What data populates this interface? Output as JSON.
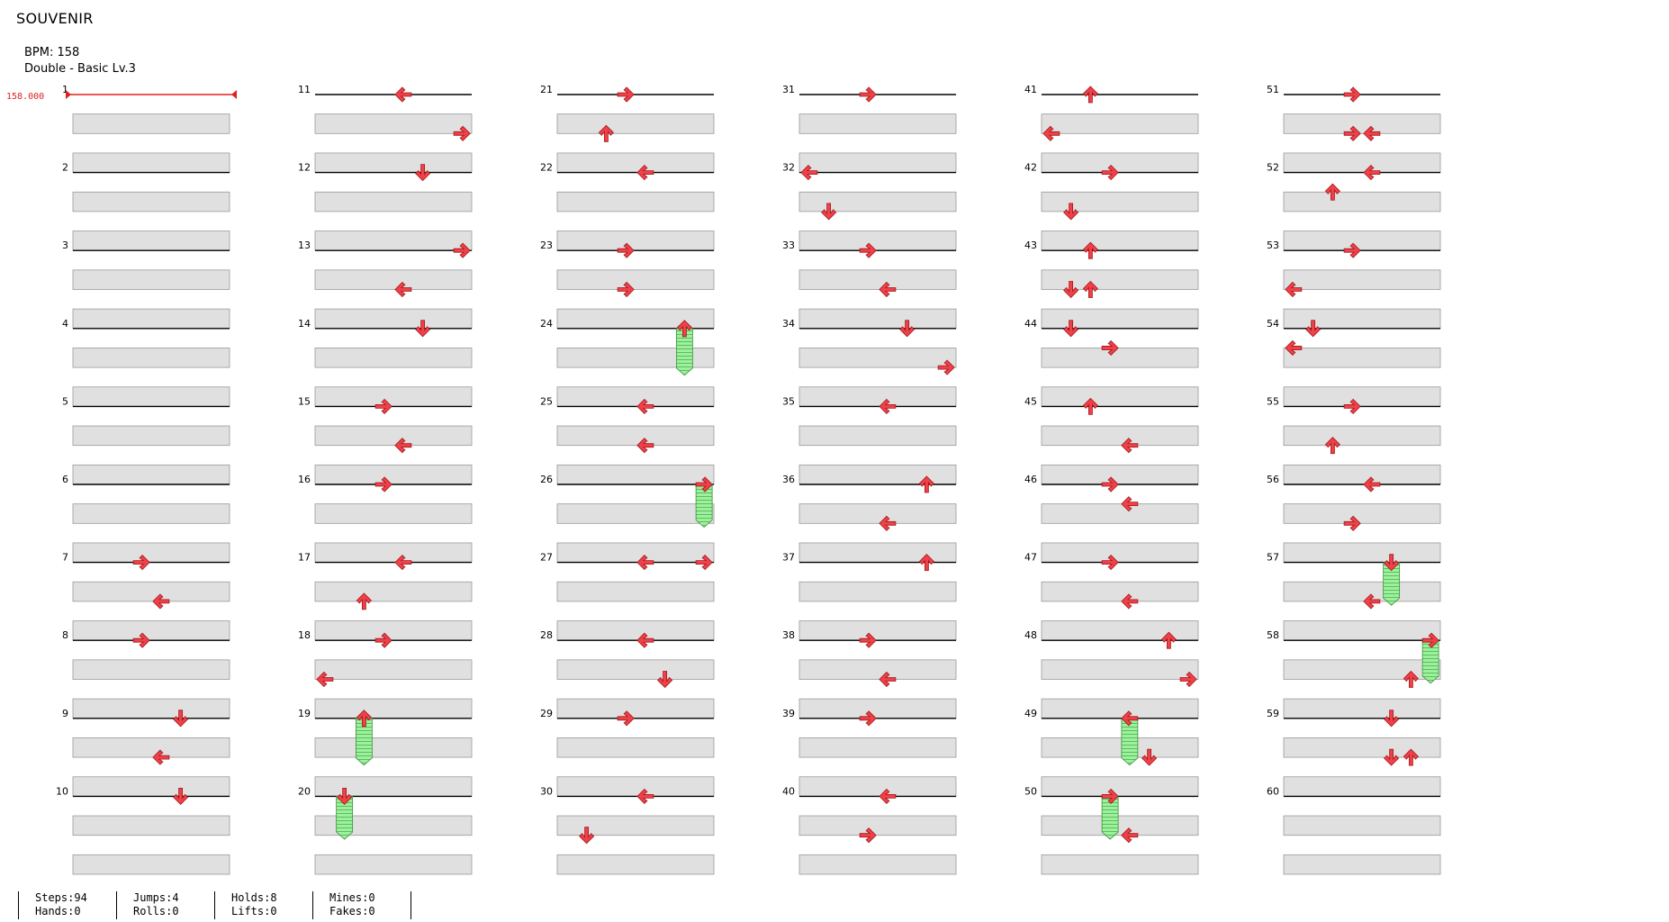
{
  "song": {
    "title": "SOUVENIR",
    "bpm_label": "BPM: 158",
    "difficulty_label": "Double - Basic Lv.3"
  },
  "bpm_marker_label": "158.000",
  "stats": {
    "steps": "Steps:94",
    "hands": "Hands:0",
    "jumps": "Jumps:4",
    "rolls": "Rolls:0",
    "holds": "Holds:8",
    "lifts": "Lifts:0",
    "mines": "Mines:0",
    "fakes": "Fakes:0"
  },
  "chart_data": {
    "type": "table",
    "title": "SOUVENIR",
    "measures_total": 60,
    "lanes": 8,
    "note_colors": {
      "tap": "#f0404a",
      "hold_body": "#8de88d"
    },
    "notes": [
      {
        "m": 7,
        "b": 0,
        "lane": 3,
        "dir": "right"
      },
      {
        "m": 7,
        "b": 0.5,
        "lane": 4,
        "dir": "left"
      },
      {
        "m": 8,
        "b": 0,
        "lane": 3,
        "dir": "right"
      },
      {
        "m": 9,
        "b": 0,
        "lane": 5,
        "dir": "down"
      },
      {
        "m": 9,
        "b": 0.5,
        "lane": 4,
        "dir": "left"
      },
      {
        "m": 10,
        "b": 0,
        "lane": 5,
        "dir": "down"
      },
      {
        "m": 11,
        "b": 0,
        "lane": 4,
        "dir": "left"
      },
      {
        "m": 11,
        "b": 0.5,
        "lane": 7,
        "dir": "right"
      },
      {
        "m": 12,
        "b": 0,
        "lane": 5,
        "dir": "down"
      },
      {
        "m": 13,
        "b": 0,
        "lane": 7,
        "dir": "right"
      },
      {
        "m": 13,
        "b": 0.5,
        "lane": 4,
        "dir": "left"
      },
      {
        "m": 14,
        "b": 0,
        "lane": 5,
        "dir": "down"
      },
      {
        "m": 15,
        "b": 0,
        "lane": 3,
        "dir": "right"
      },
      {
        "m": 15,
        "b": 0.5,
        "lane": 4,
        "dir": "left"
      },
      {
        "m": 16,
        "b": 0,
        "lane": 3,
        "dir": "right"
      },
      {
        "m": 17,
        "b": 0,
        "lane": 4,
        "dir": "left"
      },
      {
        "m": 17,
        "b": 0.5,
        "lane": 2,
        "dir": "up"
      },
      {
        "m": 18,
        "b": 0,
        "lane": 3,
        "dir": "right"
      },
      {
        "m": 18,
        "b": 0.5,
        "lane": 0,
        "dir": "left"
      },
      {
        "m": 19,
        "b": 0,
        "lane": 2,
        "dir": "up",
        "hold": 0.6
      },
      {
        "m": 20,
        "b": 0,
        "lane": 1,
        "dir": "down",
        "hold": 0.55
      },
      {
        "m": 21,
        "b": 0,
        "lane": 3,
        "dir": "right"
      },
      {
        "m": 21,
        "b": 0.5,
        "lane": 2,
        "dir": "up"
      },
      {
        "m": 22,
        "b": 0,
        "lane": 4,
        "dir": "left"
      },
      {
        "m": 23,
        "b": 0,
        "lane": 3,
        "dir": "right"
      },
      {
        "m": 23,
        "b": 0.5,
        "lane": 3,
        "dir": "right"
      },
      {
        "m": 24,
        "b": 0,
        "lane": 6,
        "dir": "up",
        "hold": 0.6
      },
      {
        "m": 25,
        "b": 0,
        "lane": 4,
        "dir": "left"
      },
      {
        "m": 25,
        "b": 0.5,
        "lane": 4,
        "dir": "left"
      },
      {
        "m": 26,
        "b": 0,
        "lane": 7,
        "dir": "right",
        "hold": 0.55
      },
      {
        "m": 27,
        "b": 0,
        "lane": 4,
        "dir": "left"
      },
      {
        "m": 27,
        "b": 0,
        "lane": 7,
        "dir": "right"
      },
      {
        "m": 28,
        "b": 0,
        "lane": 4,
        "dir": "left"
      },
      {
        "m": 28,
        "b": 0.5,
        "lane": 5,
        "dir": "down"
      },
      {
        "m": 29,
        "b": 0,
        "lane": 3,
        "dir": "right"
      },
      {
        "m": 30,
        "b": 0,
        "lane": 4,
        "dir": "left"
      },
      {
        "m": 30,
        "b": 0.5,
        "lane": 1,
        "dir": "down"
      },
      {
        "m": 31,
        "b": 0,
        "lane": 3,
        "dir": "right"
      },
      {
        "m": 32,
        "b": 0,
        "lane": 0,
        "dir": "left"
      },
      {
        "m": 32,
        "b": 0.5,
        "lane": 1,
        "dir": "down"
      },
      {
        "m": 33,
        "b": 0,
        "lane": 3,
        "dir": "right"
      },
      {
        "m": 33,
        "b": 0.5,
        "lane": 4,
        "dir": "left"
      },
      {
        "m": 34,
        "b": 0,
        "lane": 5,
        "dir": "down"
      },
      {
        "m": 34,
        "b": 0.5,
        "lane": 7,
        "dir": "right"
      },
      {
        "m": 35,
        "b": 0,
        "lane": 4,
        "dir": "left"
      },
      {
        "m": 36,
        "b": 0,
        "lane": 6,
        "dir": "up"
      },
      {
        "m": 36,
        "b": 0.5,
        "lane": 4,
        "dir": "left"
      },
      {
        "m": 37,
        "b": 0,
        "lane": 6,
        "dir": "up"
      },
      {
        "m": 38,
        "b": 0,
        "lane": 3,
        "dir": "right"
      },
      {
        "m": 38,
        "b": 0.5,
        "lane": 4,
        "dir": "left"
      },
      {
        "m": 39,
        "b": 0,
        "lane": 3,
        "dir": "right"
      },
      {
        "m": 40,
        "b": 0,
        "lane": 4,
        "dir": "left"
      },
      {
        "m": 40,
        "b": 0.5,
        "lane": 3,
        "dir": "right"
      },
      {
        "m": 41,
        "b": 0,
        "lane": 2,
        "dir": "up"
      },
      {
        "m": 41,
        "b": 0.5,
        "lane": 0,
        "dir": "left"
      },
      {
        "m": 42,
        "b": 0,
        "lane": 3,
        "dir": "right"
      },
      {
        "m": 42,
        "b": 0.5,
        "lane": 1,
        "dir": "down"
      },
      {
        "m": 43,
        "b": 0,
        "lane": 2,
        "dir": "up"
      },
      {
        "m": 43,
        "b": 0.5,
        "lane": 1,
        "dir": "down"
      },
      {
        "m": 43,
        "b": 0.5,
        "lane": 2,
        "dir": "up"
      },
      {
        "m": 44,
        "b": 0,
        "lane": 1,
        "dir": "down"
      },
      {
        "m": 44,
        "b": 0.25,
        "lane": 3,
        "dir": "right"
      },
      {
        "m": 45,
        "b": 0,
        "lane": 2,
        "dir": "up"
      },
      {
        "m": 45,
        "b": 0.5,
        "lane": 4,
        "dir": "left"
      },
      {
        "m": 46,
        "b": 0,
        "lane": 3,
        "dir": "right"
      },
      {
        "m": 46,
        "b": 0.25,
        "lane": 4,
        "dir": "left"
      },
      {
        "m": 47,
        "b": 0,
        "lane": 3,
        "dir": "right"
      },
      {
        "m": 47,
        "b": 0.5,
        "lane": 4,
        "dir": "left"
      },
      {
        "m": 48,
        "b": 0,
        "lane": 6,
        "dir": "up"
      },
      {
        "m": 48,
        "b": 0.5,
        "lane": 7,
        "dir": "right"
      },
      {
        "m": 49,
        "b": 0,
        "lane": 4,
        "dir": "left",
        "hold": 0.6
      },
      {
        "m": 49,
        "b": 0.5,
        "lane": 5,
        "dir": "down"
      },
      {
        "m": 50,
        "b": 0,
        "lane": 3,
        "dir": "right",
        "hold": 0.55
      },
      {
        "m": 50,
        "b": 0.5,
        "lane": 4,
        "dir": "left"
      },
      {
        "m": 51,
        "b": 0,
        "lane": 3,
        "dir": "right"
      },
      {
        "m": 51,
        "b": 0.5,
        "lane": 3,
        "dir": "right"
      },
      {
        "m": 51,
        "b": 0.5,
        "lane": 4,
        "dir": "left"
      },
      {
        "m": 52,
        "b": 0,
        "lane": 4,
        "dir": "left"
      },
      {
        "m": 52,
        "b": 0.25,
        "lane": 2,
        "dir": "up"
      },
      {
        "m": 53,
        "b": 0,
        "lane": 3,
        "dir": "right"
      },
      {
        "m": 53,
        "b": 0.5,
        "lane": 0,
        "dir": "left"
      },
      {
        "m": 54,
        "b": 0,
        "lane": 1,
        "dir": "down"
      },
      {
        "m": 54,
        "b": 0.25,
        "lane": 0,
        "dir": "left"
      },
      {
        "m": 55,
        "b": 0,
        "lane": 3,
        "dir": "right"
      },
      {
        "m": 55,
        "b": 0.5,
        "lane": 2,
        "dir": "up"
      },
      {
        "m": 56,
        "b": 0,
        "lane": 4,
        "dir": "left"
      },
      {
        "m": 56,
        "b": 0.5,
        "lane": 3,
        "dir": "right"
      },
      {
        "m": 57,
        "b": 0,
        "lane": 5,
        "dir": "down",
        "hold": 0.55
      },
      {
        "m": 57,
        "b": 0.5,
        "lane": 4,
        "dir": "left"
      },
      {
        "m": 58,
        "b": 0,
        "lane": 7,
        "dir": "right",
        "hold": 0.55
      },
      {
        "m": 58,
        "b": 0.5,
        "lane": 6,
        "dir": "up"
      },
      {
        "m": 59,
        "b": 0,
        "lane": 5,
        "dir": "down"
      },
      {
        "m": 59,
        "b": 0.5,
        "lane": 5,
        "dir": "down"
      },
      {
        "m": 59,
        "b": 0.5,
        "lane": 6,
        "dir": "up"
      }
    ]
  }
}
